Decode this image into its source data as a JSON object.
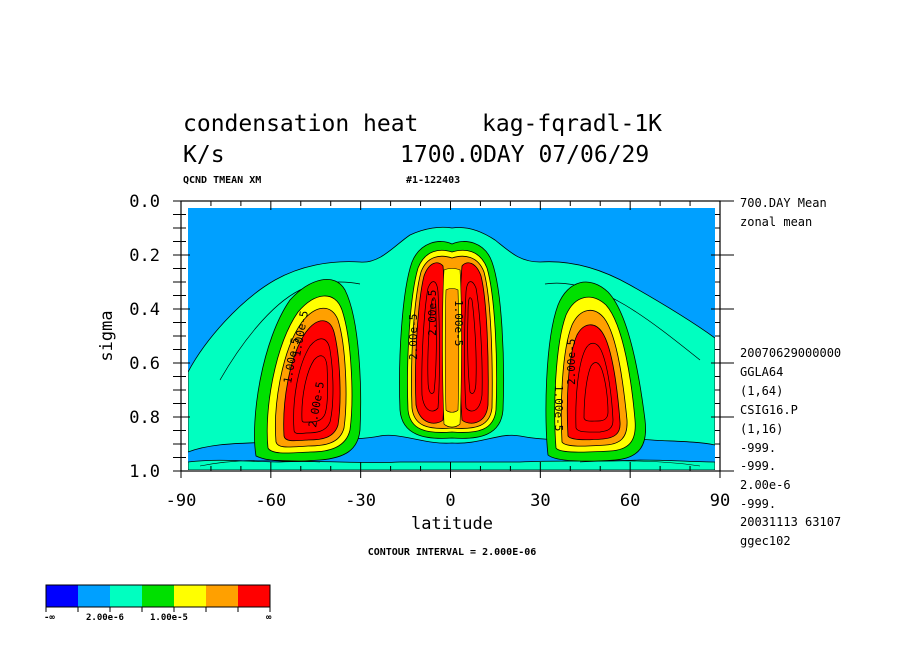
{
  "chart_data": {
    "type": "contour",
    "title_line1": "condensation heat",
    "title_line1_overlap": "kag-fqradl-1K",
    "units": "K/s",
    "date_stamp": "1700.0DAY 07/06/29",
    "var_label": "QCND TMEAN XM",
    "run_id": "#1-122403",
    "xlabel": "latitude",
    "ylabel": "sigma",
    "xlim": [
      -90,
      90
    ],
    "ylim": [
      1.0,
      0.0
    ],
    "x_ticks": [
      "-90",
      "-60",
      "-30",
      "0",
      "30",
      "60",
      "90"
    ],
    "x_tick_values": [
      -90,
      -60,
      -30,
      0,
      30,
      60,
      90
    ],
    "y_ticks": [
      "0.0",
      "0.2",
      "0.4",
      "0.6",
      "0.8",
      "1.0"
    ],
    "y_tick_values": [
      0.0,
      0.2,
      0.4,
      0.6,
      0.8,
      1.0
    ],
    "contour_interval_text": "CONTOUR INTERVAL = 2.000E-06",
    "contour_labels": [
      "1.00e-5",
      "1.00e-5",
      "2.00e-5",
      "2.00e-5",
      "2.00e-5",
      "1.00e-5",
      "2.00e-5",
      "1.00e-5"
    ],
    "colorbar": {
      "colors": [
        "#0000ff",
        "#00a0ff",
        "#00ffc0",
        "#00e000",
        "#ffff00",
        "#ffa000",
        "#ff0000"
      ],
      "labels": [
        "-∞",
        "2.00e-6",
        "1.00e-5",
        "∞"
      ]
    },
    "features": [
      {
        "name": "southern maximum",
        "lat": -43,
        "sigma": 0.65
      },
      {
        "name": "equatorial maximum south",
        "lat": -7,
        "sigma": 0.5
      },
      {
        "name": "equatorial maximum north",
        "lat": 8,
        "sigma": 0.5
      },
      {
        "name": "northern maximum",
        "lat": 45,
        "sigma": 0.65
      }
    ]
  },
  "side_info": [
    "700.DAY Mean",
    "zonal mean"
  ],
  "side_meta": [
    "20070629000000",
    "GGLA64",
    "(1,64)",
    "CSIG16.P",
    "(1,16)",
    "-999.",
    "-999.",
    "2.00e-6",
    "-999.",
    "20031113  63107",
    "ggec102"
  ]
}
